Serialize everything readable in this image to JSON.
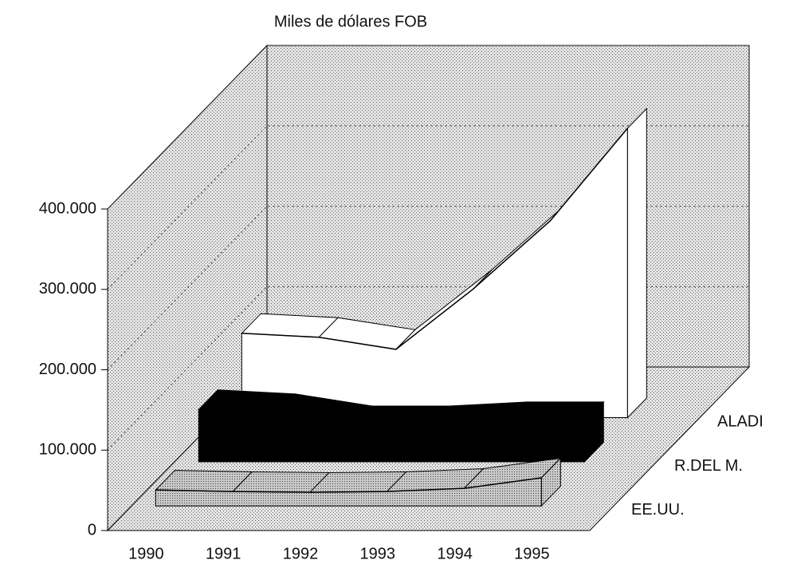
{
  "chart_data": {
    "type": "area3d",
    "ylabel": "Miles de dólares FOB",
    "categories": [
      "1990",
      "1991",
      "1992",
      "1993",
      "1994",
      "1995"
    ],
    "series": [
      {
        "name": "ALADI",
        "color": "#ffffff",
        "values": [
          105000,
          100000,
          85000,
          160000,
          245000,
          360000
        ]
      },
      {
        "name": "R.DEL M.",
        "color": "#000000",
        "values": [
          65000,
          60000,
          45000,
          45000,
          50000,
          50000
        ]
      },
      {
        "name": "EE.UU.",
        "color": "#b8b8b8",
        "values": [
          20000,
          18000,
          17000,
          18000,
          22000,
          35000
        ]
      }
    ],
    "ylim": [
      0,
      400000
    ],
    "yticks": [
      0,
      {
        "value": 100000,
        "label": "100.000"
      },
      {
        "value": 200000,
        "label": "200.000"
      },
      {
        "value": 300000,
        "label": "300.000"
      },
      {
        "value": 400000,
        "label": "400.000"
      }
    ],
    "grid": true
  }
}
